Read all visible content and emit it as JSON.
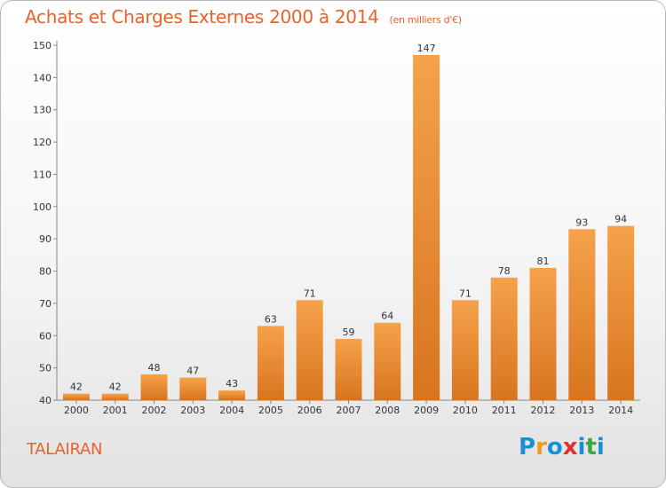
{
  "title": "Achats et Charges Externes 2000 à 2014",
  "subtitle": "(en milliers d'€)",
  "commune": "TALAIRAN",
  "logo": {
    "text": "Proxiti",
    "letters": [
      {
        "char": "P",
        "color": "#1b8fd6"
      },
      {
        "char": "r",
        "color": "#f29a1f"
      },
      {
        "char": "o",
        "color": "#1b8fd6"
      },
      {
        "char": "x",
        "color": "#e0312e"
      },
      {
        "char": "i",
        "color": "#1b8fd6"
      },
      {
        "char": "t",
        "color": "#39a845"
      },
      {
        "char": "i",
        "color": "#1b8fd6"
      }
    ]
  },
  "colors": {
    "title": "#e8622c",
    "bar_light": "#f5a24a",
    "bar_dark": "#d8751f",
    "axis": "#888888",
    "grid_tick": "#aaaaaa",
    "text": "#333333"
  },
  "chart_data": {
    "type": "bar",
    "categories": [
      "2000",
      "2001",
      "2002",
      "2003",
      "2004",
      "2005",
      "2006",
      "2007",
      "2008",
      "2009",
      "2010",
      "2011",
      "2012",
      "2013",
      "2014"
    ],
    "values": [
      42,
      42,
      48,
      47,
      43,
      63,
      71,
      59,
      64,
      147,
      71,
      78,
      81,
      93,
      94
    ],
    "ylim": [
      40,
      150
    ],
    "yticks": [
      40,
      50,
      60,
      70,
      80,
      90,
      100,
      110,
      120,
      130,
      140,
      150
    ],
    "grid": false,
    "data_labels": true
  }
}
